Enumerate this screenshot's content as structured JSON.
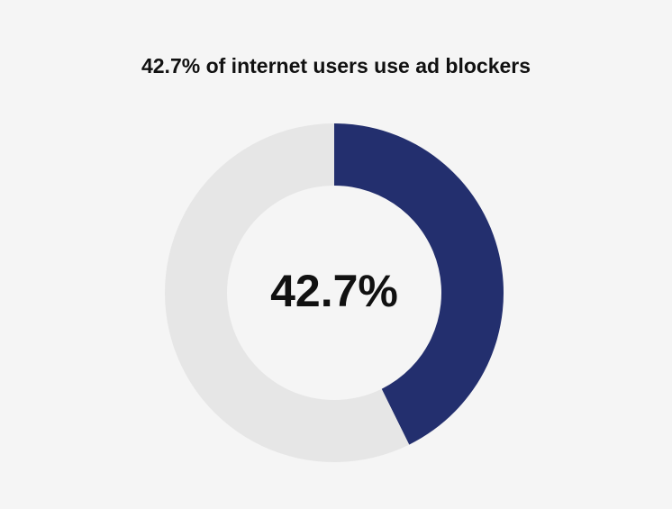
{
  "chart_data": {
    "type": "donut",
    "title": "42.7% of internet users use ad blockers",
    "values": [
      42.7,
      57.3
    ],
    "value_labels": [
      "42.7%",
      null
    ],
    "colors": [
      "#232f6e",
      "#e6e6e6"
    ]
  }
}
